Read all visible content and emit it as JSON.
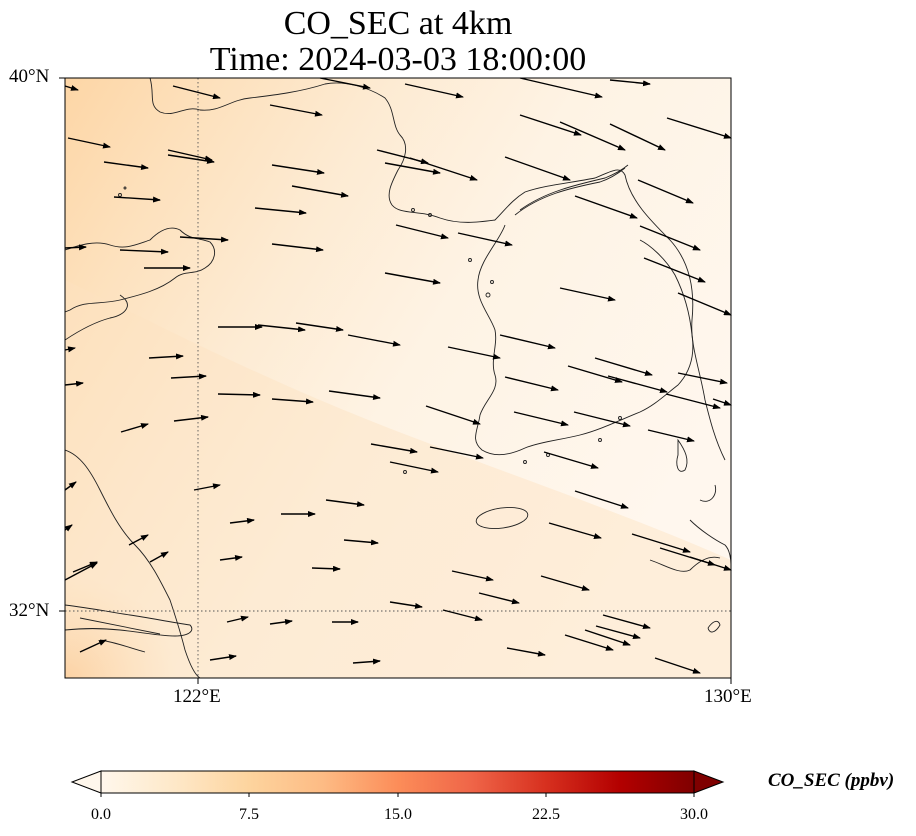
{
  "title": {
    "line1": "CO_SEC at 4km",
    "line2": "Time: 2024-03-03 18:00:00"
  },
  "axes": {
    "lat_ticks": [
      "40°N",
      "32°N"
    ],
    "lon_ticks": [
      "122°E",
      "130°E"
    ],
    "extent": {
      "lon_min": 120,
      "lon_max": 130,
      "lat_min": 31,
      "lat_max": 40
    },
    "gridlines": {
      "lon": [
        122
      ],
      "lat": [
        32
      ],
      "style": "dotted"
    }
  },
  "colorbar": {
    "label": "CO_SEC (ppbv)",
    "ticks": [
      "0.0",
      "7.5",
      "15.0",
      "22.5",
      "30.0"
    ],
    "min": 0,
    "max": 30,
    "extend": "both",
    "colormap": [
      "#fff7ec",
      "#fee8c8",
      "#fdd49e",
      "#fdbb84",
      "#fc8d59",
      "#ef6548",
      "#d7301f",
      "#b30000",
      "#7f0000"
    ]
  },
  "field": {
    "description_values_ppbv": {
      "west_coast_max": 8,
      "open_sea": 3,
      "east_min": 0.5
    },
    "wind_direction": "westerly to west-northwesterly"
  }
}
